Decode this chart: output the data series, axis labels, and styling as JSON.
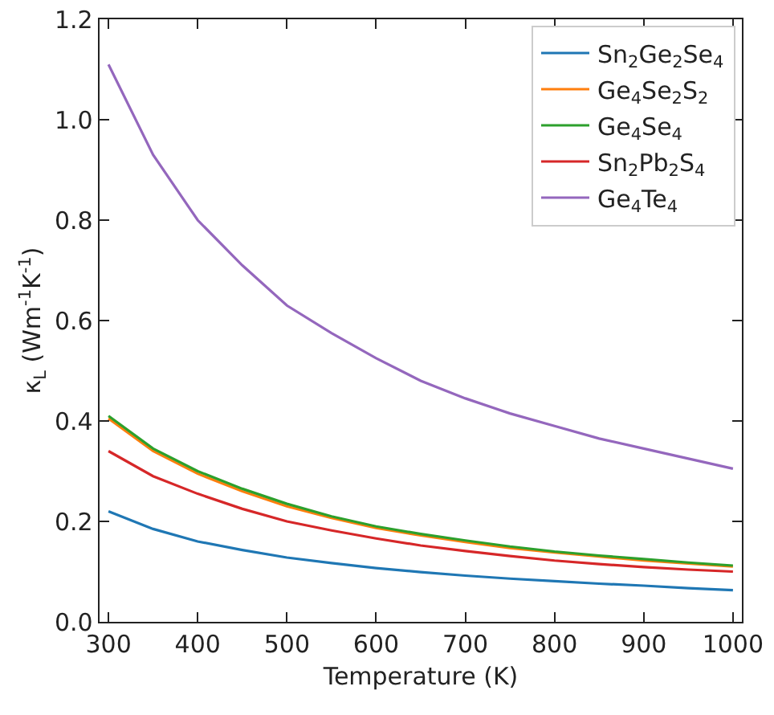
{
  "chart_data": {
    "type": "line",
    "xlabel": "Temperature (K)",
    "ylabel": "κ$_{L}$ (Wm$^{-1}$K$^{-1}$)",
    "x": [
      300,
      350,
      400,
      450,
      500,
      550,
      600,
      650,
      700,
      750,
      800,
      850,
      900,
      950,
      1000
    ],
    "xlim": [
      290,
      1010
    ],
    "xticks": [
      300,
      400,
      500,
      600,
      700,
      800,
      900,
      1000
    ],
    "ylim": [
      0,
      1.2
    ],
    "yticks": [
      {
        "value": 0,
        "label": "0.0"
      },
      0.2,
      0.4,
      0.6,
      0.8,
      {
        "value": 1,
        "label": "1.0"
      },
      1.2
    ],
    "grid": false,
    "legend": "top right",
    "marker": "none",
    "line_style": "solid",
    "series": [
      {
        "name": "Sn$_{2}$Ge$_{2}$Se$_{4}$",
        "color": "#1f77b4",
        "values": [
          0.22,
          0.185,
          0.16,
          0.143,
          0.128,
          0.117,
          0.107,
          0.099,
          0.092,
          0.086,
          0.081,
          0.076,
          0.072,
          0.067,
          0.063
        ]
      },
      {
        "name": "Ge$_{4}$Se$_{2}$S$_{2}$",
        "color": "#ff7f0e",
        "values": [
          0.405,
          0.34,
          0.295,
          0.26,
          0.23,
          0.207,
          0.187,
          0.172,
          0.159,
          0.147,
          0.138,
          0.13,
          0.122,
          0.116,
          0.11
        ]
      },
      {
        "name": "Ge$_{4}$Se$_{4}$",
        "color": "#2ca02c",
        "values": [
          0.41,
          0.345,
          0.3,
          0.265,
          0.235,
          0.21,
          0.19,
          0.175,
          0.162,
          0.15,
          0.14,
          0.132,
          0.125,
          0.118,
          0.112
        ]
      },
      {
        "name": "Sn$_{2}$Pb$_{2}$S$_{4}$",
        "color": "#d62728",
        "values": [
          0.34,
          0.29,
          0.255,
          0.225,
          0.2,
          0.182,
          0.166,
          0.152,
          0.141,
          0.131,
          0.122,
          0.115,
          0.109,
          0.104,
          0.1
        ]
      },
      {
        "name": "Ge$_{4}$Te$_{4}$",
        "color": "#9467bd",
        "values": [
          1.11,
          0.93,
          0.8,
          0.71,
          0.63,
          0.575,
          0.525,
          0.48,
          0.445,
          0.415,
          0.39,
          0.365,
          0.345,
          0.325,
          0.305
        ]
      }
    ]
  }
}
